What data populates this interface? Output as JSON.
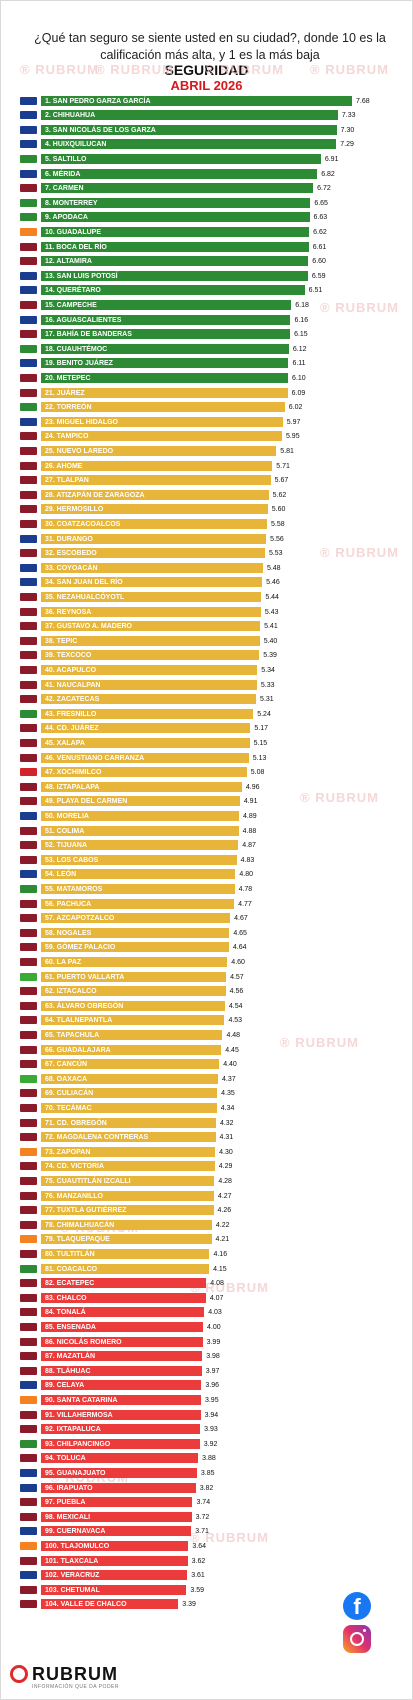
{
  "header": {
    "question": "¿Qué tan seguro se siente usted en su ciudad?, donde 10 es la calificación más alta, y  1 es la más baja",
    "title": "SEGURIDAD",
    "subtitle": "ABRIL 2026"
  },
  "watermark": "RUBRUM",
  "footer": {
    "brand": "RUBRUM",
    "tagline": "INFORMACIÓN QUE DA PODER"
  },
  "colors": {
    "green": "#2e8b35",
    "yellow": "#e6b53a",
    "red": "#ec3b3b",
    "title_red": "#d7191c"
  },
  "party_colors": {
    "PAN": "#1a3d8f",
    "MORENA": "#8b1b2b",
    "PRI": "#2e8b35",
    "MC": "#f58220",
    "PT": "#d2232a",
    "PVEM": "#3aa935"
  },
  "social": {
    "facebook_icon": "facebook-icon",
    "instagram_icon": "instagram-icon"
  },
  "chart_data": {
    "type": "bar",
    "orientation": "horizontal",
    "title": "SEGURIDAD",
    "subtitle": "ABRIL 2026",
    "xlim": [
      0,
      8
    ],
    "rows": [
      {
        "label": "1. SAN PEDRO GARZA GARCÍA",
        "value": 7.68,
        "band": "green",
        "party": "PAN"
      },
      {
        "label": "2. CHIHUAHUA",
        "value": 7.33,
        "band": "green",
        "party": "PAN"
      },
      {
        "label": "3. SAN NICOLÁS DE LOS GARZA",
        "value": 7.3,
        "band": "green",
        "party": "PAN"
      },
      {
        "label": "4. HUIXQUILUCAN",
        "value": 7.29,
        "band": "green",
        "party": "PAN"
      },
      {
        "label": "5. SALTILLO",
        "value": 6.91,
        "band": "green",
        "party": "PRI"
      },
      {
        "label": "6. MÉRIDA",
        "value": 6.82,
        "band": "green",
        "party": "PAN"
      },
      {
        "label": "7. CARMEN",
        "value": 6.72,
        "band": "green",
        "party": "MORENA"
      },
      {
        "label": "8. MONTERREY",
        "value": 6.65,
        "band": "green",
        "party": "PRI"
      },
      {
        "label": "9. APODACA",
        "value": 6.63,
        "band": "green",
        "party": "PRI"
      },
      {
        "label": "10. GUADALUPE",
        "value": 6.62,
        "band": "green",
        "party": "MC"
      },
      {
        "label": "11. BOCA DEL RÍO",
        "value": 6.61,
        "band": "green",
        "party": "MORENA"
      },
      {
        "label": "12. ALTAMIRA",
        "value": 6.6,
        "band": "green",
        "party": "MORENA"
      },
      {
        "label": "13. SAN LUIS POTOSÍ",
        "value": 6.59,
        "band": "green",
        "party": "PAN"
      },
      {
        "label": "14. QUERÉTARO",
        "value": 6.51,
        "band": "green",
        "party": "PAN"
      },
      {
        "label": "15. CAMPECHE",
        "value": 6.18,
        "band": "green",
        "party": "MORENA"
      },
      {
        "label": "16. AGUASCALIENTES",
        "value": 6.16,
        "band": "green",
        "party": "PAN"
      },
      {
        "label": "17. BAHÍA DE BANDERAS",
        "value": 6.15,
        "band": "green",
        "party": "MORENA"
      },
      {
        "label": "18. CUAUHTÉMOC",
        "value": 6.12,
        "band": "green",
        "party": "PRI"
      },
      {
        "label": "19. BENITO JUÁREZ",
        "value": 6.11,
        "band": "green",
        "party": "PAN"
      },
      {
        "label": "20. METEPEC",
        "value": 6.1,
        "band": "green",
        "party": "MORENA"
      },
      {
        "label": "21. JUÁREZ",
        "value": 6.09,
        "band": "yellow",
        "party": "MORENA"
      },
      {
        "label": "22. TORREÓN",
        "value": 6.02,
        "band": "yellow",
        "party": "PRI"
      },
      {
        "label": "23. MIGUEL HIDALGO",
        "value": 5.97,
        "band": "yellow",
        "party": "PAN"
      },
      {
        "label": "24. TAMPICO",
        "value": 5.95,
        "band": "yellow",
        "party": "MORENA"
      },
      {
        "label": "25. NUEVO LAREDO",
        "value": 5.81,
        "band": "yellow",
        "party": "MORENA"
      },
      {
        "label": "26. AHOME",
        "value": 5.71,
        "band": "yellow",
        "party": "MORENA"
      },
      {
        "label": "27. TLALPAN",
        "value": 5.67,
        "band": "yellow",
        "party": "MORENA"
      },
      {
        "label": "28. ATIZAPÁN DE ZARAGOZA",
        "value": 5.62,
        "band": "yellow",
        "party": "MORENA"
      },
      {
        "label": "29. HERMOSILLO",
        "value": 5.6,
        "band": "yellow",
        "party": "MORENA"
      },
      {
        "label": "30. COATZACOALCOS",
        "value": 5.58,
        "band": "yellow",
        "party": "MORENA"
      },
      {
        "label": "31. DURANGO",
        "value": 5.56,
        "band": "yellow",
        "party": "PAN"
      },
      {
        "label": "32. ESCOBEDO",
        "value": 5.53,
        "band": "yellow",
        "party": "MORENA"
      },
      {
        "label": "33. COYOACÁN",
        "value": 5.48,
        "band": "yellow",
        "party": "PAN"
      },
      {
        "label": "34. SAN JUAN DEL RÍO",
        "value": 5.46,
        "band": "yellow",
        "party": "PAN"
      },
      {
        "label": "35. NEZAHUALCÓYOTL",
        "value": 5.44,
        "band": "yellow",
        "party": "MORENA"
      },
      {
        "label": "36. REYNOSA",
        "value": 5.43,
        "band": "yellow",
        "party": "MORENA"
      },
      {
        "label": "37. GUSTAVO A. MADERO",
        "value": 5.41,
        "band": "yellow",
        "party": "MORENA"
      },
      {
        "label": "38. TEPIC",
        "value": 5.4,
        "band": "yellow",
        "party": "MORENA"
      },
      {
        "label": "39. TEXCOCO",
        "value": 5.39,
        "band": "yellow",
        "party": "MORENA"
      },
      {
        "label": "40. ACAPULCO",
        "value": 5.34,
        "band": "yellow",
        "party": "MORENA"
      },
      {
        "label": "41. NAUCALPAN",
        "value": 5.33,
        "band": "yellow",
        "party": "MORENA"
      },
      {
        "label": "42. ZACATECAS",
        "value": 5.31,
        "band": "yellow",
        "party": "MORENA"
      },
      {
        "label": "43. FRESNILLO",
        "value": 5.24,
        "band": "yellow",
        "party": "PRI"
      },
      {
        "label": "44. CD. JUÁREZ",
        "value": 5.17,
        "band": "yellow",
        "party": "MORENA"
      },
      {
        "label": "45. XALAPA",
        "value": 5.15,
        "band": "yellow",
        "party": "MORENA"
      },
      {
        "label": "46. VENUSTIANO CARRANZA",
        "value": 5.13,
        "band": "yellow",
        "party": "MORENA"
      },
      {
        "label": "47. XOCHIMILCO",
        "value": 5.08,
        "band": "yellow",
        "party": "PT"
      },
      {
        "label": "48. IZTAPALAPA",
        "value": 4.96,
        "band": "yellow",
        "party": "MORENA"
      },
      {
        "label": "49. PLAYA DEL CARMEN",
        "value": 4.91,
        "band": "yellow",
        "party": "MORENA"
      },
      {
        "label": "50. MORELIA",
        "value": 4.89,
        "band": "yellow",
        "party": "PAN"
      },
      {
        "label": "51. COLIMA",
        "value": 4.88,
        "band": "yellow",
        "party": "MORENA"
      },
      {
        "label": "52. TIJUANA",
        "value": 4.87,
        "band": "yellow",
        "party": "MORENA"
      },
      {
        "label": "53. LOS CABOS",
        "value": 4.83,
        "band": "yellow",
        "party": "MORENA"
      },
      {
        "label": "54. LEÓN",
        "value": 4.8,
        "band": "yellow",
        "party": "PAN"
      },
      {
        "label": "55. MATAMOROS",
        "value": 4.78,
        "band": "yellow",
        "party": "PRI"
      },
      {
        "label": "56. PACHUCA",
        "value": 4.77,
        "band": "yellow",
        "party": "MORENA"
      },
      {
        "label": "57. AZCAPOTZALCO",
        "value": 4.67,
        "band": "yellow",
        "party": "MORENA"
      },
      {
        "label": "58. NOGALES",
        "value": 4.65,
        "band": "yellow",
        "party": "MORENA"
      },
      {
        "label": "59. GÓMEZ PALACIO",
        "value": 4.64,
        "band": "yellow",
        "party": "MORENA"
      },
      {
        "label": "60. LA PAZ",
        "value": 4.6,
        "band": "yellow",
        "party": "MORENA"
      },
      {
        "label": "61. PUERTO VALLARTA",
        "value": 4.57,
        "band": "yellow",
        "party": "PVEM"
      },
      {
        "label": "62. IZTACALCO",
        "value": 4.56,
        "band": "yellow",
        "party": "MORENA"
      },
      {
        "label": "63. ÁLVARO OBREGÓN",
        "value": 4.54,
        "band": "yellow",
        "party": "MORENA"
      },
      {
        "label": "64. TLALNEPANTLA",
        "value": 4.53,
        "band": "yellow",
        "party": "MORENA"
      },
      {
        "label": "65. TAPACHULA",
        "value": 4.48,
        "band": "yellow",
        "party": "MORENA"
      },
      {
        "label": "66. GUADALAJARA",
        "value": 4.45,
        "band": "yellow",
        "party": "MORENA"
      },
      {
        "label": "67. CANCÚN",
        "value": 4.4,
        "band": "yellow",
        "party": "MORENA"
      },
      {
        "label": "68. OAXACA",
        "value": 4.37,
        "band": "yellow",
        "party": "PVEM"
      },
      {
        "label": "69. CULIACÁN",
        "value": 4.35,
        "band": "yellow",
        "party": "MORENA"
      },
      {
        "label": "70. TECÁMAC",
        "value": 4.34,
        "band": "yellow",
        "party": "MORENA"
      },
      {
        "label": "71. CD. OBREGÓN",
        "value": 4.32,
        "band": "yellow",
        "party": "MORENA"
      },
      {
        "label": "72. MAGDALENA CONTRERAS",
        "value": 4.31,
        "band": "yellow",
        "party": "MORENA"
      },
      {
        "label": "73. ZAPOPAN",
        "value": 4.3,
        "band": "yellow",
        "party": "MC"
      },
      {
        "label": "74. CD. VICTORIA",
        "value": 4.29,
        "band": "yellow",
        "party": "MORENA"
      },
      {
        "label": "75. CUAUTITLÁN IZCALLI",
        "value": 4.28,
        "band": "yellow",
        "party": "MORENA"
      },
      {
        "label": "76. MANZANILLO",
        "value": 4.27,
        "band": "yellow",
        "party": "MORENA"
      },
      {
        "label": "77. TUXTLA GUTIÉRREZ",
        "value": 4.26,
        "band": "yellow",
        "party": "MORENA"
      },
      {
        "label": "78. CHIMALHUACÁN",
        "value": 4.22,
        "band": "yellow",
        "party": "MORENA"
      },
      {
        "label": "79. TLAQUEPAQUE",
        "value": 4.21,
        "band": "yellow",
        "party": "MC"
      },
      {
        "label": "80. TULTITLÁN",
        "value": 4.16,
        "band": "yellow",
        "party": "MORENA"
      },
      {
        "label": "81. COACALCO",
        "value": 4.15,
        "band": "yellow",
        "party": "PRI"
      },
      {
        "label": "82. ECATEPEC",
        "value": 4.08,
        "band": "red",
        "party": "MORENA"
      },
      {
        "label": "83. CHALCO",
        "value": 4.07,
        "band": "red",
        "party": "MORENA"
      },
      {
        "label": "84. TONALÁ",
        "value": 4.03,
        "band": "red",
        "party": "MORENA"
      },
      {
        "label": "85. ENSENADA",
        "value": 4.0,
        "band": "red",
        "party": "MORENA"
      },
      {
        "label": "86. NICOLÁS ROMERO",
        "value": 3.99,
        "band": "red",
        "party": "MORENA"
      },
      {
        "label": "87. MAZATLÁN",
        "value": 3.98,
        "band": "red",
        "party": "MORENA"
      },
      {
        "label": "88. TLÁHUAC",
        "value": 3.97,
        "band": "red",
        "party": "MORENA"
      },
      {
        "label": "89. CELAYA",
        "value": 3.96,
        "band": "red",
        "party": "PAN"
      },
      {
        "label": "90. SANTA CATARINA",
        "value": 3.95,
        "band": "red",
        "party": "MC"
      },
      {
        "label": "91. VILLAHERMOSA",
        "value": 3.94,
        "band": "red",
        "party": "MORENA"
      },
      {
        "label": "92. IXTAPALUCA",
        "value": 3.93,
        "band": "red",
        "party": "MORENA"
      },
      {
        "label": "93. CHILPANCINGO",
        "value": 3.92,
        "band": "red",
        "party": "PRI"
      },
      {
        "label": "94. TOLUCA",
        "value": 3.88,
        "band": "red",
        "party": "MORENA"
      },
      {
        "label": "95. GUANAJUATO",
        "value": 3.85,
        "band": "red",
        "party": "PAN"
      },
      {
        "label": "96. IRAPUATO",
        "value": 3.82,
        "band": "red",
        "party": "PAN"
      },
      {
        "label": "97. PUEBLA",
        "value": 3.74,
        "band": "red",
        "party": "MORENA"
      },
      {
        "label": "98. MEXICALI",
        "value": 3.72,
        "band": "red",
        "party": "MORENA"
      },
      {
        "label": "99. CUERNAVACA",
        "value": 3.71,
        "band": "red",
        "party": "PAN"
      },
      {
        "label": "100. TLAJOMULCO",
        "value": 3.64,
        "band": "red",
        "party": "MC"
      },
      {
        "label": "101. TLAXCALA",
        "value": 3.62,
        "band": "red",
        "party": "MORENA"
      },
      {
        "label": "102. VERACRUZ",
        "value": 3.61,
        "band": "red",
        "party": "PAN"
      },
      {
        "label": "103. CHETUMAL",
        "value": 3.59,
        "band": "red",
        "party": "MORENA"
      },
      {
        "label": "104. VALLE DE CHALCO",
        "value": 3.39,
        "band": "red",
        "party": "MORENA"
      }
    ]
  }
}
